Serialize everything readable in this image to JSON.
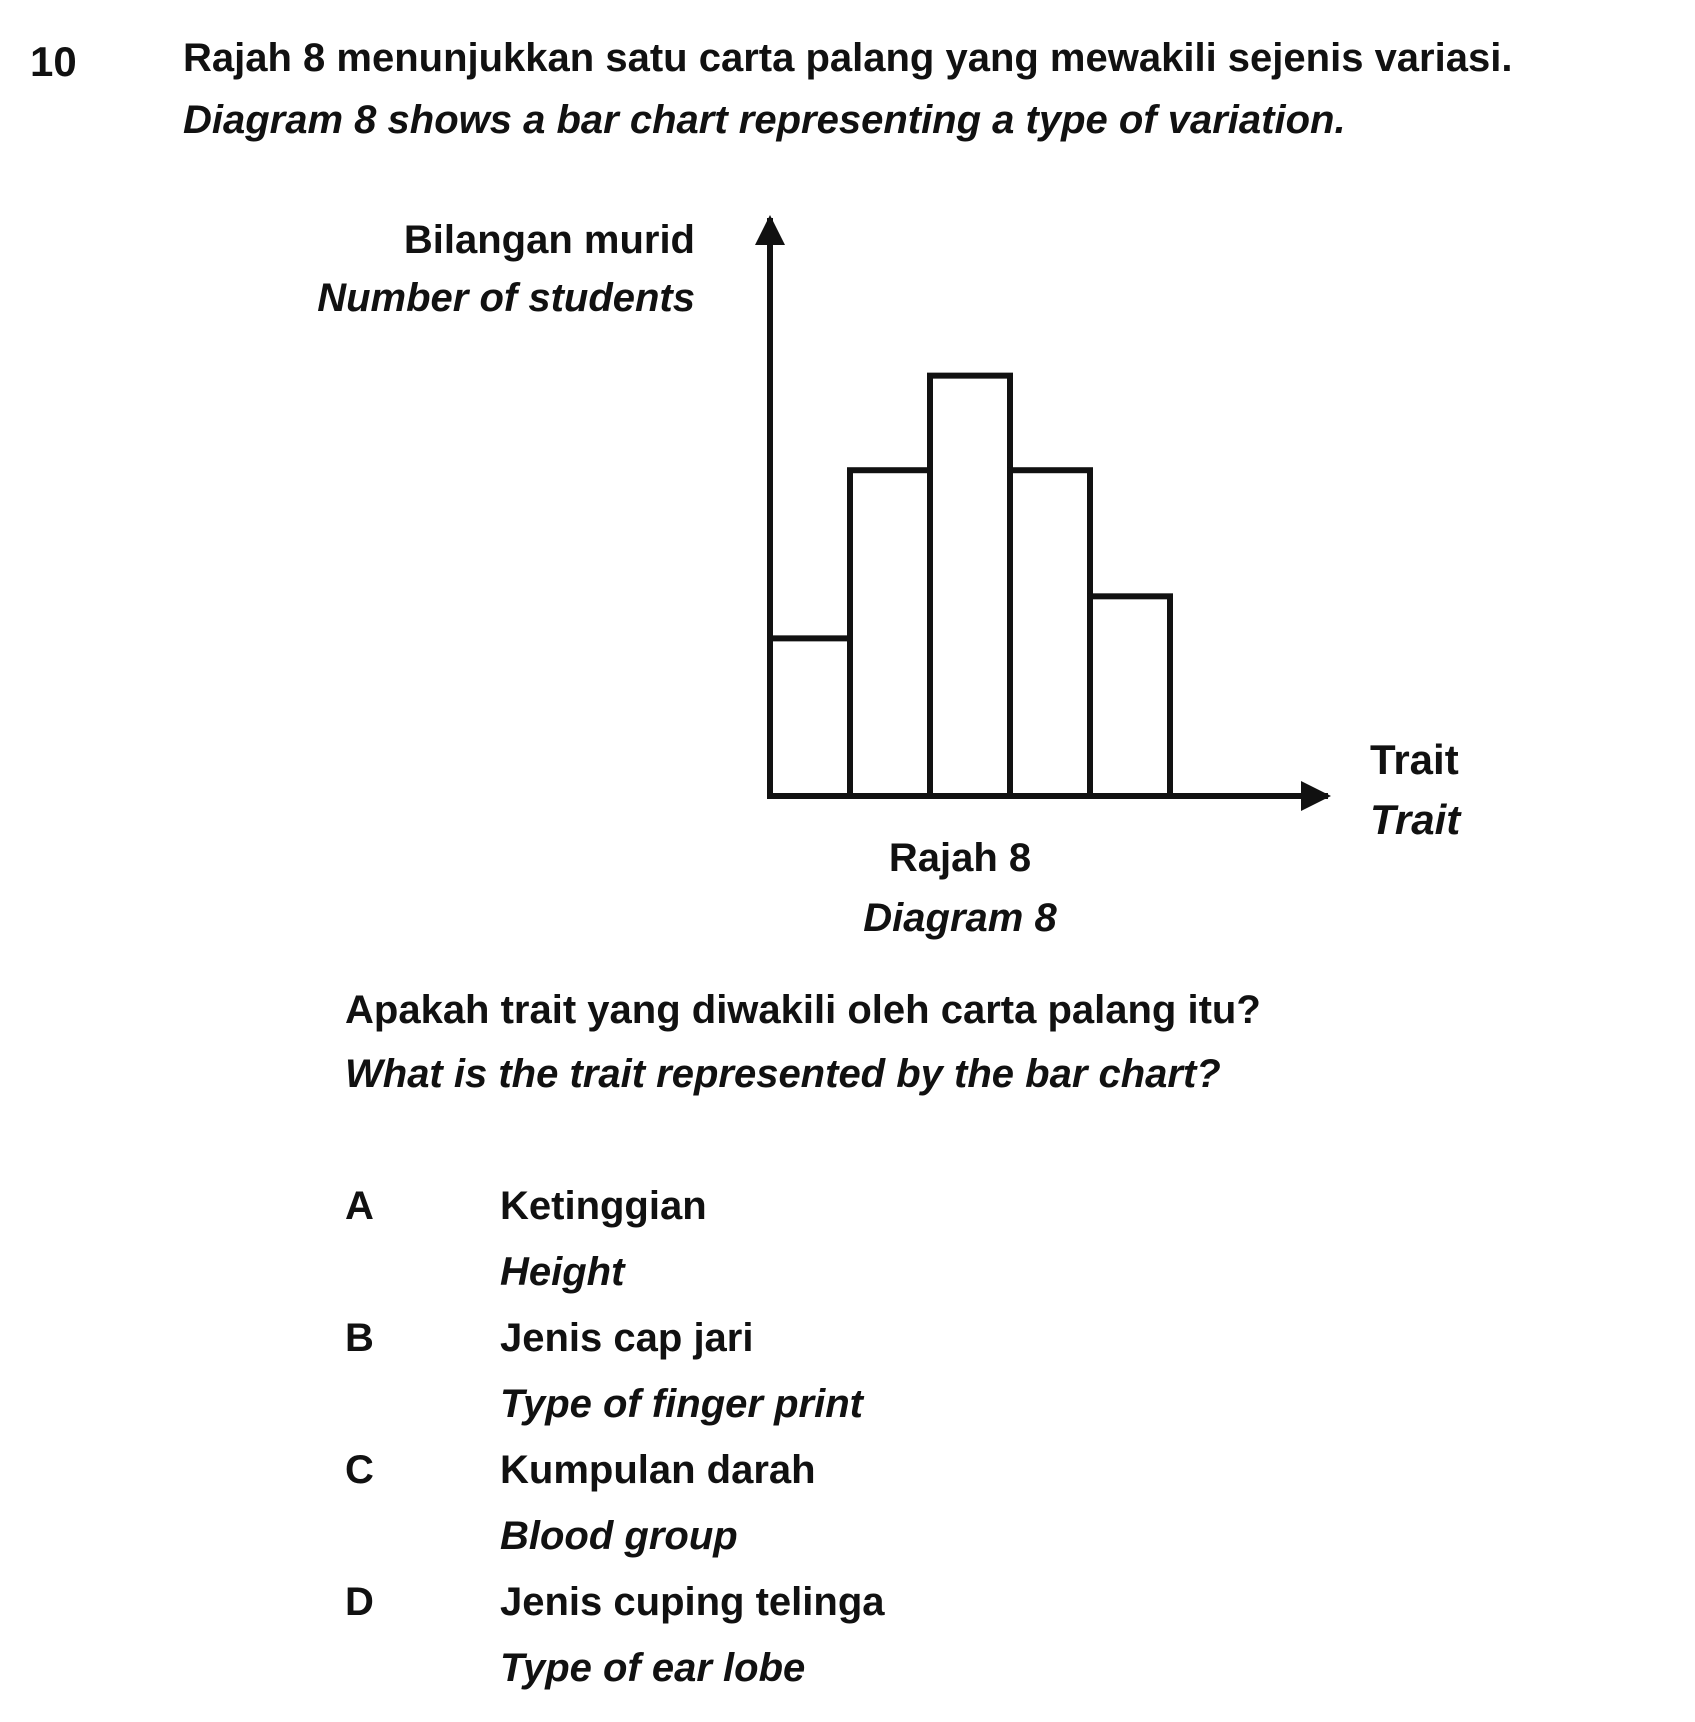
{
  "question": {
    "number": "10",
    "stem_ms": "Rajah 8 menunjukkan satu carta palang yang mewakili sejenis variasi.",
    "stem_en": "Diagram 8 shows a bar chart representing a type of variation.",
    "prompt_ms": "Apakah trait yang diwakili oleh carta palang itu?",
    "prompt_en": "What is the trait represented by the bar chart?"
  },
  "diagram": {
    "caption_ms": "Rajah 8",
    "caption_en": "Diagram 8"
  },
  "chart_data": {
    "type": "bar",
    "ylabel_ms": "Bilangan murid",
    "ylabel_en": "Number of students",
    "xlabel_ms": "Trait",
    "xlabel_en": "Trait",
    "categories": [
      "",
      "",
      "",
      "",
      ""
    ],
    "values": [
      3,
      6.2,
      8,
      6.2,
      3.8
    ],
    "ylim": [
      0,
      11
    ],
    "grid": false,
    "axis_arrows": true
  },
  "options": [
    {
      "letter": "A",
      "text_ms": "Ketinggian",
      "text_en": "Height"
    },
    {
      "letter": "B",
      "text_ms": "Jenis cap jari",
      "text_en": "Type of finger print"
    },
    {
      "letter": "C",
      "text_ms": "Kumpulan darah",
      "text_en": "Blood group"
    },
    {
      "letter": "D",
      "text_ms": "Jenis cuping telinga",
      "text_en": "Type of ear lobe"
    }
  ]
}
